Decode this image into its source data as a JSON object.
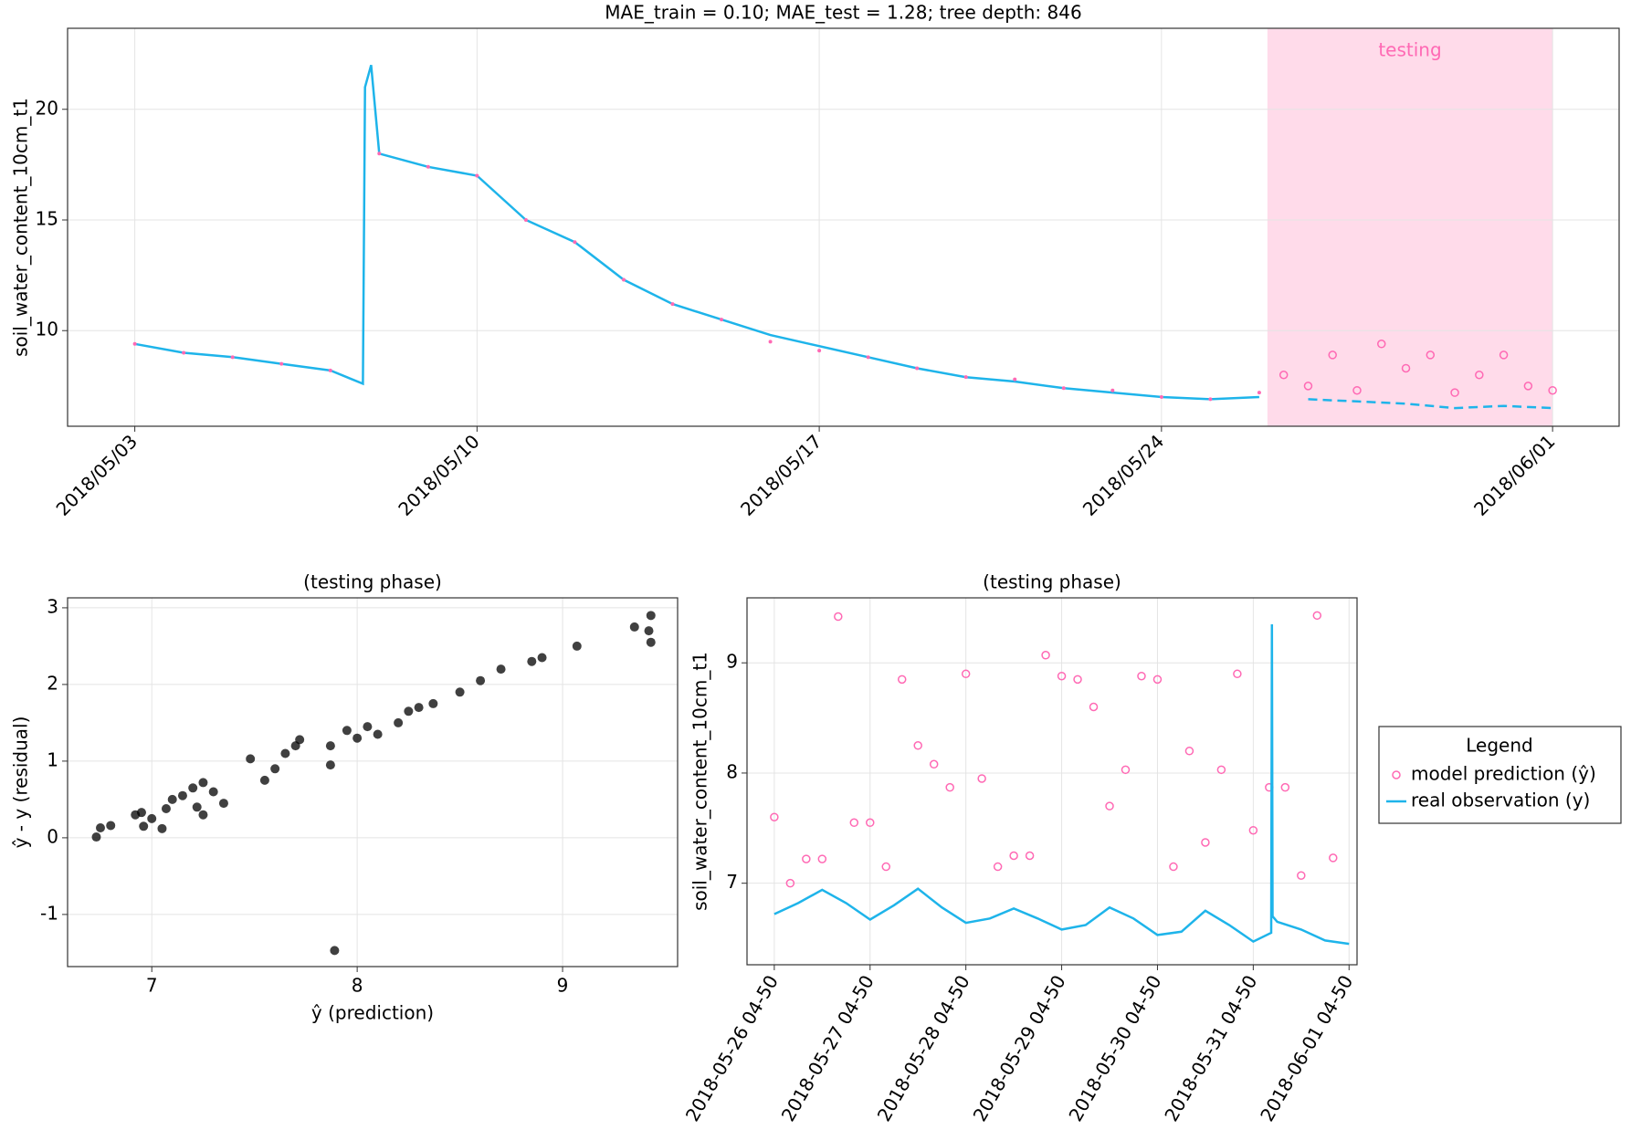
{
  "chart_data": [
    {
      "type": "line",
      "title": "MAE_train = 0.10; MAE_test = 1.28; tree depth: 846",
      "ylabel": "soil_water_content_10cm_t1",
      "xlim": [
        "2018/05/01 15:00",
        "2018/06/02 08:40"
      ],
      "ylim": [
        5.68,
        23.66
      ],
      "xticks": [
        "2018/05/03",
        "2018/05/10",
        "2018/05/17",
        "2018/05/24",
        "2018/06/01"
      ],
      "yticks": [
        10,
        15,
        20
      ],
      "grid": true,
      "span": {
        "x": [
          "2018/05/26 04:00",
          "2018/06/01 00:00"
        ],
        "color": "#ffdbea",
        "label": "testing",
        "label_color": "#ff69b4"
      },
      "series": [
        {
          "color": "#1eb4ea",
          "style": "line",
          "dash_in_span": true,
          "x": [
            "2018/05/03",
            "2018/05/04",
            "2018/05/05",
            "2018/05/06",
            "2018/05/07",
            "2018/05/07 16:00",
            "2018/05/07 17:00",
            "2018/05/07 20:00",
            "2018/05/08",
            "2018/05/09",
            "2018/05/10",
            "2018/05/11",
            "2018/05/12",
            "2018/05/13",
            "2018/05/14",
            "2018/05/15",
            "2018/05/16",
            "2018/05/17",
            "2018/05/18",
            "2018/05/19",
            "2018/05/20",
            "2018/05/21",
            "2018/05/22",
            "2018/05/23",
            "2018/05/24",
            "2018/05/25",
            "2018/05/26",
            "2018/05/27",
            "2018/05/28",
            "2018/05/29",
            "2018/05/30",
            "2018/05/31",
            "2018/06/01"
          ],
          "values": [
            9.4,
            9.0,
            8.8,
            8.5,
            8.2,
            7.6,
            21.0,
            22.0,
            18.0,
            17.4,
            17.0,
            15.0,
            14.0,
            12.3,
            11.2,
            10.5,
            9.8,
            9.3,
            8.8,
            8.3,
            7.9,
            7.7,
            7.4,
            7.2,
            7.0,
            6.9,
            7.0,
            6.9,
            6.8,
            6.7,
            6.5,
            6.6,
            6.5
          ]
        },
        {
          "color": "#ff69b4",
          "style": "points",
          "marker": "dot",
          "x": [
            "2018/05/03",
            "2018/05/04",
            "2018/05/05",
            "2018/05/06",
            "2018/05/07",
            "2018/05/08",
            "2018/05/09",
            "2018/05/10",
            "2018/05/11",
            "2018/05/12",
            "2018/05/13",
            "2018/05/14",
            "2018/05/15",
            "2018/05/16",
            "2018/05/17",
            "2018/05/18",
            "2018/05/19",
            "2018/05/20",
            "2018/05/21",
            "2018/05/22",
            "2018/05/23",
            "2018/05/24",
            "2018/05/25",
            "2018/05/26",
            "2018/05/26 12:00",
            "2018/05/27",
            "2018/05/27 12:00",
            "2018/05/28",
            "2018/05/28 12:00",
            "2018/05/29",
            "2018/05/29 12:00",
            "2018/05/30",
            "2018/05/30 12:00",
            "2018/05/31",
            "2018/05/31 12:00",
            "2018/06/01"
          ],
          "values": [
            9.4,
            9.0,
            8.8,
            8.5,
            8.2,
            18.0,
            17.4,
            17.0,
            15.0,
            14.0,
            12.3,
            11.2,
            10.5,
            9.5,
            9.1,
            8.8,
            8.3,
            7.9,
            7.8,
            7.4,
            7.3,
            7.0,
            6.9,
            7.2,
            8.0,
            7.5,
            8.9,
            7.3,
            9.4,
            8.3,
            8.9,
            7.2,
            8.0,
            8.9,
            7.5,
            7.3
          ]
        }
      ]
    },
    {
      "type": "scatter",
      "title": "(testing phase)",
      "xlabel": "ŷ (prediction)",
      "ylabel": "ŷ - y (residual)",
      "xlim": [
        6.59,
        9.56
      ],
      "ylim": [
        -1.68,
        3.13
      ],
      "xticks": [
        7,
        8,
        9
      ],
      "yticks": [
        -1,
        0,
        1,
        2,
        3
      ],
      "grid": true,
      "color": "#000000",
      "x": [
        6.73,
        6.75,
        6.8,
        6.92,
        6.95,
        6.96,
        7.0,
        7.05,
        7.07,
        7.1,
        7.15,
        7.2,
        7.22,
        7.25,
        7.25,
        7.3,
        7.35,
        7.48,
        7.55,
        7.6,
        7.65,
        7.7,
        7.72,
        7.87,
        7.87,
        7.89,
        7.95,
        8.0,
        8.05,
        8.1,
        8.2,
        8.25,
        8.3,
        8.37,
        8.5,
        8.6,
        8.7,
        8.85,
        8.9,
        9.07,
        9.35,
        9.43,
        9.43,
        9.42
      ],
      "values": [
        0.01,
        0.13,
        0.16,
        0.3,
        0.33,
        0.15,
        0.25,
        0.12,
        0.38,
        0.5,
        0.55,
        0.65,
        0.4,
        0.72,
        0.3,
        0.6,
        0.45,
        1.03,
        0.75,
        0.9,
        1.1,
        1.2,
        1.28,
        1.2,
        0.95,
        -1.47,
        1.4,
        1.3,
        1.45,
        1.35,
        1.5,
        1.65,
        1.7,
        1.75,
        1.9,
        2.05,
        2.2,
        2.3,
        2.35,
        2.5,
        2.75,
        2.9,
        2.55,
        2.7
      ]
    },
    {
      "type": "line",
      "title": "(testing phase)",
      "ylabel": "soil_water_content_10cm_t1",
      "xlim": [
        "2018-05-25 22:00",
        "2018-06-01 06:50"
      ],
      "ylim": [
        6.26,
        9.59
      ],
      "xticks": [
        {
          "value": "2018-05-26 04:50",
          "label": "2018-05-26 04-50"
        },
        {
          "value": "2018-05-27 04:50",
          "label": "2018-05-27 04-50"
        },
        {
          "value": "2018-05-28 04:50",
          "label": "2018-05-28 04-50"
        },
        {
          "value": "2018-05-29 04:50",
          "label": "2018-05-29 04-50"
        },
        {
          "value": "2018-05-30 04:50",
          "label": "2018-05-30 04-50"
        },
        {
          "value": "2018-05-31 04:50",
          "label": "2018-05-31 04-50"
        },
        {
          "value": "2018-06-01 04:50",
          "label": "2018-06-01 04-50"
        }
      ],
      "yticks": [
        7,
        8,
        9
      ],
      "grid": true,
      "legend": "right",
      "legend_title": "Legend",
      "series": [
        {
          "name": "model prediction (ŷ)",
          "color": "#ff69b4",
          "style": "points",
          "marker": "circle-open",
          "x": [
            "2018-05-26 04:50",
            "2018-05-26 08:50",
            "2018-05-26 12:50",
            "2018-05-26 16:50",
            "2018-05-26 20:50",
            "2018-05-27 00:50",
            "2018-05-27 04:50",
            "2018-05-27 08:50",
            "2018-05-27 12:50",
            "2018-05-27 16:50",
            "2018-05-27 20:50",
            "2018-05-28 00:50",
            "2018-05-28 04:50",
            "2018-05-28 08:50",
            "2018-05-28 12:50",
            "2018-05-28 16:50",
            "2018-05-28 20:50",
            "2018-05-29 00:50",
            "2018-05-29 04:50",
            "2018-05-29 08:50",
            "2018-05-29 12:50",
            "2018-05-29 16:50",
            "2018-05-29 20:50",
            "2018-05-30 00:50",
            "2018-05-30 04:50",
            "2018-05-30 08:50",
            "2018-05-30 12:50",
            "2018-05-30 16:50",
            "2018-05-30 20:50",
            "2018-05-31 00:50",
            "2018-05-31 04:50",
            "2018-05-31 08:50",
            "2018-05-31 12:50",
            "2018-05-31 16:50",
            "2018-05-31 20:50",
            "2018-06-01 00:50"
          ],
          "values": [
            7.6,
            7.0,
            7.22,
            7.22,
            9.42,
            7.55,
            7.55,
            7.15,
            8.85,
            8.25,
            8.08,
            7.87,
            8.9,
            7.95,
            7.15,
            7.25,
            7.25,
            9.07,
            8.88,
            8.85,
            8.6,
            7.7,
            8.03,
            8.88,
            8.85,
            7.15,
            8.2,
            7.37,
            8.03,
            8.9,
            7.48,
            7.87,
            7.87,
            7.07,
            9.43,
            7.23
          ]
        },
        {
          "name": "real observation (y)",
          "color": "#1eb4ea",
          "style": "line",
          "x": [
            "2018-05-26 04:50",
            "2018-05-26 10:50",
            "2018-05-26 16:50",
            "2018-05-26 22:50",
            "2018-05-27 04:50",
            "2018-05-27 10:50",
            "2018-05-27 16:50",
            "2018-05-27 22:50",
            "2018-05-28 04:50",
            "2018-05-28 10:50",
            "2018-05-28 16:50",
            "2018-05-28 22:50",
            "2018-05-29 04:50",
            "2018-05-29 10:50",
            "2018-05-29 16:50",
            "2018-05-29 22:50",
            "2018-05-30 04:50",
            "2018-05-30 10:50",
            "2018-05-30 16:50",
            "2018-05-30 22:50",
            "2018-05-31 04:50",
            "2018-05-31 09:20",
            "2018-05-31 09:30",
            "2018-05-31 09:40",
            "2018-05-31 10:50",
            "2018-05-31 16:50",
            "2018-05-31 22:50",
            "2018-06-01 04:50"
          ],
          "values": [
            6.72,
            6.82,
            6.94,
            6.82,
            6.67,
            6.8,
            6.95,
            6.78,
            6.64,
            6.68,
            6.77,
            6.68,
            6.58,
            6.62,
            6.78,
            6.68,
            6.53,
            6.56,
            6.75,
            6.62,
            6.47,
            6.55,
            9.35,
            6.7,
            6.65,
            6.58,
            6.48,
            6.45
          ]
        }
      ]
    }
  ]
}
